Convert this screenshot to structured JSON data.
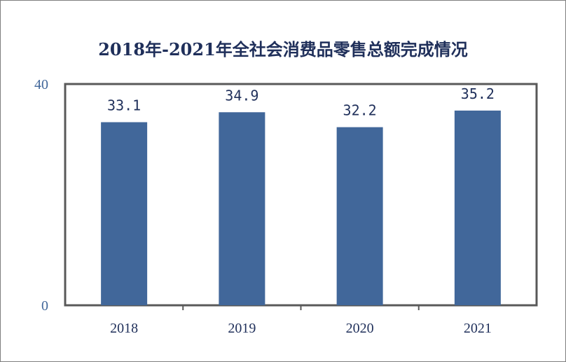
{
  "chart_data": {
    "type": "bar",
    "title": "2018年-2021年全社会消费品零售总额完成情况",
    "categories": [
      "2018",
      "2019",
      "2020",
      "2021"
    ],
    "values": [
      33.1,
      34.9,
      32.2,
      35.2
    ],
    "data_labels": [
      "33.1",
      "34.9",
      "32.2",
      "35.2"
    ],
    "y_ticks": [
      "0",
      "40"
    ],
    "ylim": [
      0,
      40
    ],
    "grid": false,
    "legend": "none",
    "colors": {
      "bar": "#41679a",
      "axis_frame": "#595959",
      "tick_label": "#41679a",
      "category_label": "#1f2f5a",
      "data_label": "#1f2f5a",
      "title": "#1f2f5a"
    }
  }
}
